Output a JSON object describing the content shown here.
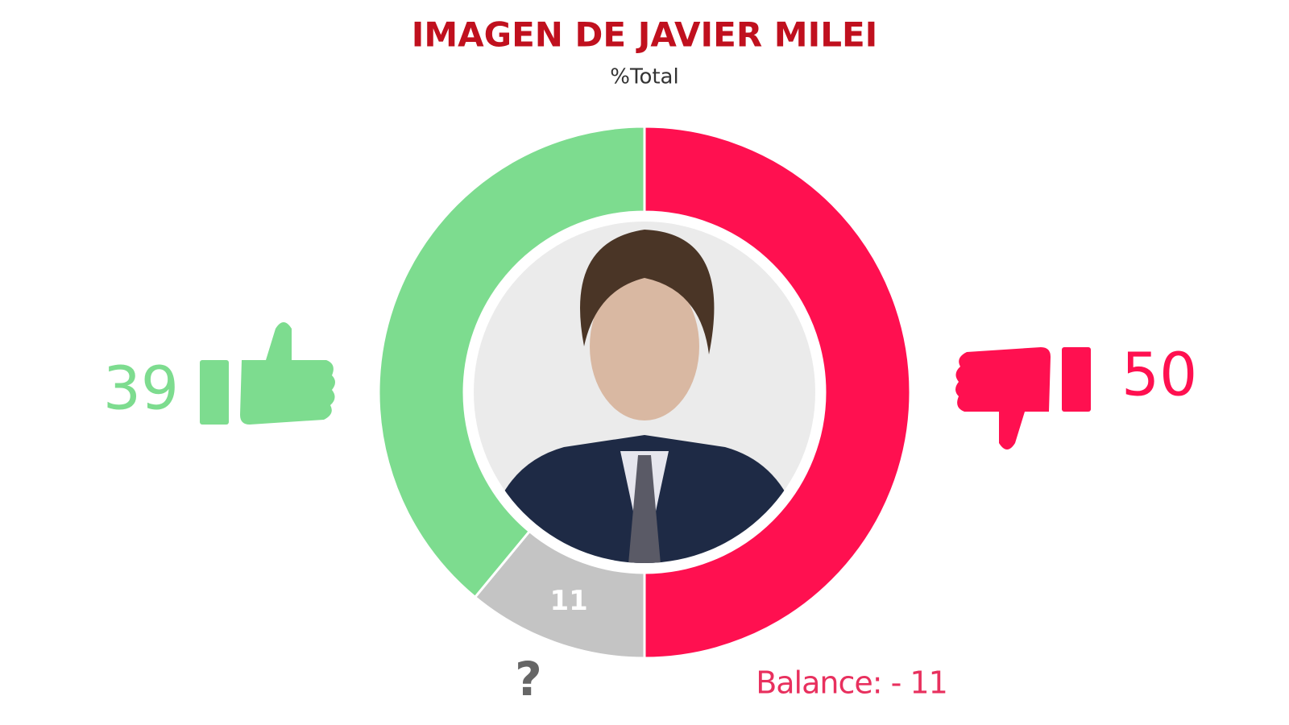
{
  "chart_data": {
    "type": "donut",
    "title": "IMAGEN DE JAVIER MILEI",
    "subtitle": "%Total",
    "categories": [
      null,
      "?",
      null
    ],
    "values": [
      50,
      11,
      39
    ],
    "colors": [
      "#ff1050",
      "#c4c4c4",
      "#7ddc8f"
    ],
    "annotation": "Balance: - 11"
  }
}
